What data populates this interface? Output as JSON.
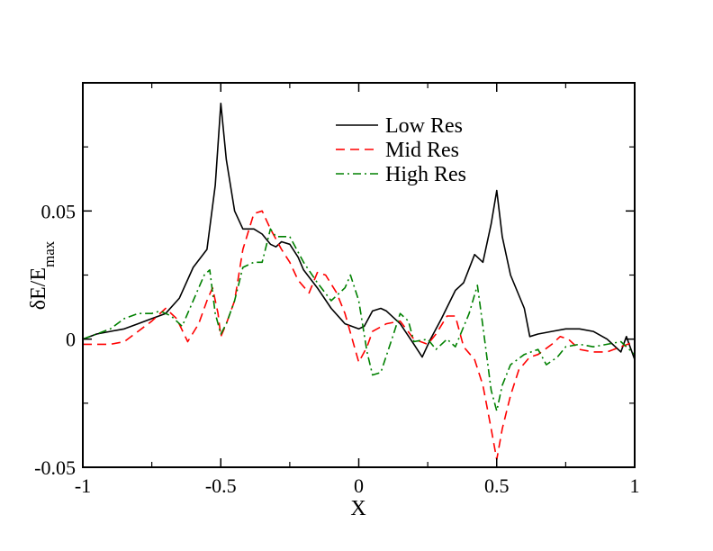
{
  "chart_data": {
    "type": "line",
    "xlabel": "X",
    "ylabel": "δE/E",
    "ylabel_sub": "max",
    "xlim": [
      -1,
      1
    ],
    "ylim": [
      -0.05,
      0.1
    ],
    "xticks": [
      -1,
      -0.5,
      0,
      0.5,
      1
    ],
    "xtick_labels": [
      "-1",
      "-0.5",
      "0",
      "0.5",
      "1"
    ],
    "yticks": [
      -0.05,
      0,
      0.05
    ],
    "ytick_labels": [
      "-0.05",
      "0",
      "0.05"
    ],
    "grid": false,
    "legend_position": "top-center",
    "series": [
      {
        "name": "Low Res",
        "color": "#000000",
        "dash": "solid",
        "points": [
          [
            -1.0,
            0.0
          ],
          [
            -0.95,
            0.002
          ],
          [
            -0.9,
            0.003
          ],
          [
            -0.85,
            0.004
          ],
          [
            -0.8,
            0.006
          ],
          [
            -0.75,
            0.008
          ],
          [
            -0.7,
            0.01
          ],
          [
            -0.65,
            0.016
          ],
          [
            -0.6,
            0.028
          ],
          [
            -0.55,
            0.035
          ],
          [
            -0.52,
            0.06
          ],
          [
            -0.5,
            0.092
          ],
          [
            -0.48,
            0.07
          ],
          [
            -0.45,
            0.05
          ],
          [
            -0.42,
            0.043
          ],
          [
            -0.38,
            0.043
          ],
          [
            -0.35,
            0.041
          ],
          [
            -0.32,
            0.037
          ],
          [
            -0.3,
            0.036
          ],
          [
            -0.28,
            0.038
          ],
          [
            -0.25,
            0.037
          ],
          [
            -0.22,
            0.032
          ],
          [
            -0.2,
            0.027
          ],
          [
            -0.15,
            0.02
          ],
          [
            -0.1,
            0.012
          ],
          [
            -0.05,
            0.006
          ],
          [
            0.0,
            0.004
          ],
          [
            0.02,
            0.005
          ],
          [
            0.05,
            0.011
          ],
          [
            0.08,
            0.012
          ],
          [
            0.1,
            0.011
          ],
          [
            0.15,
            0.006
          ],
          [
            0.2,
            -0.002
          ],
          [
            0.23,
            -0.007
          ],
          [
            0.26,
            0.0
          ],
          [
            0.3,
            0.008
          ],
          [
            0.35,
            0.019
          ],
          [
            0.38,
            0.022
          ],
          [
            0.42,
            0.033
          ],
          [
            0.45,
            0.03
          ],
          [
            0.48,
            0.045
          ],
          [
            0.5,
            0.058
          ],
          [
            0.52,
            0.04
          ],
          [
            0.55,
            0.025
          ],
          [
            0.6,
            0.012
          ],
          [
            0.62,
            0.001
          ],
          [
            0.65,
            0.002
          ],
          [
            0.7,
            0.003
          ],
          [
            0.75,
            0.004
          ],
          [
            0.8,
            0.004
          ],
          [
            0.85,
            0.003
          ],
          [
            0.9,
            0.0
          ],
          [
            0.95,
            -0.005
          ],
          [
            0.97,
            0.001
          ],
          [
            1.0,
            -0.008
          ]
        ]
      },
      {
        "name": "Mid Res",
        "color": "#ff0000",
        "dash": "dashed",
        "points": [
          [
            -1.0,
            -0.002
          ],
          [
            -0.95,
            -0.002
          ],
          [
            -0.9,
            -0.002
          ],
          [
            -0.85,
            -0.001
          ],
          [
            -0.8,
            0.003
          ],
          [
            -0.75,
            0.007
          ],
          [
            -0.7,
            0.012
          ],
          [
            -0.66,
            0.008
          ],
          [
            -0.62,
            -0.001
          ],
          [
            -0.58,
            0.006
          ],
          [
            -0.55,
            0.015
          ],
          [
            -0.53,
            0.02
          ],
          [
            -0.51,
            0.01
          ],
          [
            -0.5,
            0.001
          ],
          [
            -0.48,
            0.006
          ],
          [
            -0.45,
            0.015
          ],
          [
            -0.42,
            0.035
          ],
          [
            -0.38,
            0.049
          ],
          [
            -0.35,
            0.05
          ],
          [
            -0.32,
            0.043
          ],
          [
            -0.28,
            0.035
          ],
          [
            -0.25,
            0.03
          ],
          [
            -0.22,
            0.023
          ],
          [
            -0.18,
            0.018
          ],
          [
            -0.15,
            0.026
          ],
          [
            -0.12,
            0.025
          ],
          [
            -0.08,
            0.018
          ],
          [
            -0.05,
            0.01
          ],
          [
            0.0,
            -0.009
          ],
          [
            0.03,
            -0.003
          ],
          [
            0.05,
            0.003
          ],
          [
            0.1,
            0.006
          ],
          [
            0.15,
            0.007
          ],
          [
            0.2,
            0.0
          ],
          [
            0.25,
            -0.002
          ],
          [
            0.28,
            0.002
          ],
          [
            0.32,
            0.009
          ],
          [
            0.35,
            0.009
          ],
          [
            0.38,
            -0.003
          ],
          [
            0.42,
            -0.008
          ],
          [
            0.45,
            -0.018
          ],
          [
            0.48,
            -0.035
          ],
          [
            0.5,
            -0.047
          ],
          [
            0.52,
            -0.035
          ],
          [
            0.55,
            -0.022
          ],
          [
            0.58,
            -0.012
          ],
          [
            0.62,
            -0.007
          ],
          [
            0.65,
            -0.006
          ],
          [
            0.7,
            -0.002
          ],
          [
            0.73,
            0.001
          ],
          [
            0.76,
            0.0
          ],
          [
            0.8,
            -0.004
          ],
          [
            0.85,
            -0.005
          ],
          [
            0.9,
            -0.005
          ],
          [
            0.95,
            -0.003
          ],
          [
            1.0,
            -0.001
          ]
        ]
      },
      {
        "name": "High Res",
        "color": "#008000",
        "dash": "dashdot",
        "points": [
          [
            -1.0,
            0.0
          ],
          [
            -0.95,
            0.002
          ],
          [
            -0.9,
            0.004
          ],
          [
            -0.85,
            0.008
          ],
          [
            -0.8,
            0.01
          ],
          [
            -0.75,
            0.01
          ],
          [
            -0.72,
            0.011
          ],
          [
            -0.68,
            0.009
          ],
          [
            -0.64,
            0.005
          ],
          [
            -0.6,
            0.015
          ],
          [
            -0.56,
            0.025
          ],
          [
            -0.54,
            0.027
          ],
          [
            -0.52,
            0.01
          ],
          [
            -0.5,
            0.002
          ],
          [
            -0.48,
            0.006
          ],
          [
            -0.45,
            0.015
          ],
          [
            -0.42,
            0.028
          ],
          [
            -0.38,
            0.03
          ],
          [
            -0.35,
            0.03
          ],
          [
            -0.32,
            0.043
          ],
          [
            -0.3,
            0.04
          ],
          [
            -0.25,
            0.04
          ],
          [
            -0.2,
            0.03
          ],
          [
            -0.15,
            0.022
          ],
          [
            -0.1,
            0.015
          ],
          [
            -0.05,
            0.02
          ],
          [
            -0.03,
            0.025
          ],
          [
            0.0,
            0.015
          ],
          [
            0.03,
            -0.005
          ],
          [
            0.05,
            -0.014
          ],
          [
            0.08,
            -0.013
          ],
          [
            0.12,
            0.0
          ],
          [
            0.15,
            0.01
          ],
          [
            0.18,
            0.007
          ],
          [
            0.2,
            -0.001
          ],
          [
            0.25,
            0.0
          ],
          [
            0.28,
            -0.004
          ],
          [
            0.32,
            0.0
          ],
          [
            0.35,
            -0.003
          ],
          [
            0.4,
            0.01
          ],
          [
            0.43,
            0.021
          ],
          [
            0.45,
            0.005
          ],
          [
            0.48,
            -0.02
          ],
          [
            0.5,
            -0.028
          ],
          [
            0.52,
            -0.018
          ],
          [
            0.55,
            -0.01
          ],
          [
            0.6,
            -0.006
          ],
          [
            0.65,
            -0.004
          ],
          [
            0.68,
            -0.01
          ],
          [
            0.72,
            -0.007
          ],
          [
            0.75,
            -0.003
          ],
          [
            0.8,
            -0.002
          ],
          [
            0.85,
            -0.003
          ],
          [
            0.9,
            -0.002
          ],
          [
            0.95,
            -0.001
          ],
          [
            1.0,
            -0.006
          ]
        ]
      }
    ]
  }
}
